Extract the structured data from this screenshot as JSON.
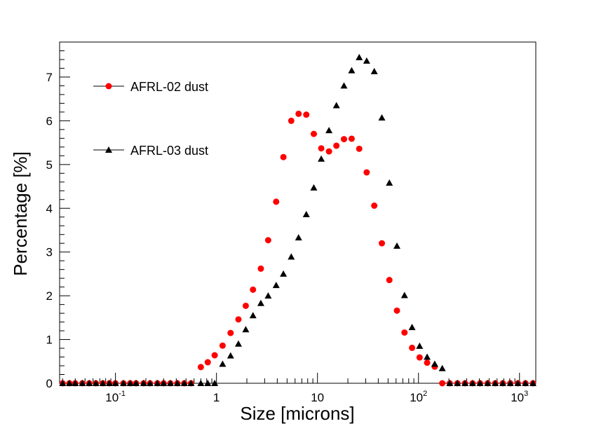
{
  "chart_data": {
    "type": "scatter",
    "title": "",
    "xlabel": "Size [microns]",
    "ylabel": "Percentage [%]",
    "xscale": "log",
    "xlim": [
      0.028,
      1450
    ],
    "ylim": [
      0,
      7.8
    ],
    "grid": false,
    "legend_position": "top-left",
    "x_ticks": [
      {
        "base": "10",
        "exp": "-1",
        "value": 0.1
      },
      {
        "base": "1",
        "exp": "",
        "value": 1
      },
      {
        "base": "10",
        "exp": "",
        "value": 10
      },
      {
        "base": "10",
        "exp": "2",
        "value": 100
      },
      {
        "base": "10",
        "exp": "3",
        "value": 1000
      }
    ],
    "y_ticks": [
      "0",
      "1",
      "2",
      "3",
      "4",
      "5",
      "6",
      "7"
    ],
    "series": [
      {
        "name": "AFRL-02 dust",
        "marker": "circle",
        "color": "#ff0000",
        "x": [
          0.03,
          0.035,
          0.04,
          0.047,
          0.055,
          0.064,
          0.075,
          0.087,
          0.1,
          0.12,
          0.14,
          0.16,
          0.19,
          0.22,
          0.26,
          0.3,
          0.35,
          0.41,
          0.48,
          0.56,
          0.7,
          0.82,
          0.96,
          1.15,
          1.38,
          1.65,
          1.95,
          2.3,
          2.75,
          3.25,
          3.9,
          4.6,
          5.5,
          6.5,
          7.75,
          9.2,
          10.9,
          13,
          15.4,
          18.3,
          21.8,
          25.9,
          30.7,
          36.5,
          43.4,
          51.5,
          61.2,
          72.7,
          86.4,
          102.6,
          121.8,
          144.8,
          172,
          204,
          243,
          289,
          343,
          407,
          484,
          575,
          683,
          811,
          964,
          1145,
          1360
        ],
        "values": [
          0,
          0,
          0,
          0,
          0,
          0,
          0,
          0,
          0,
          0,
          0,
          0,
          0,
          0,
          0,
          0,
          0,
          0,
          0,
          0,
          0.37,
          0.48,
          0.64,
          0.86,
          1.15,
          1.46,
          1.77,
          2.14,
          2.62,
          3.27,
          4.15,
          5.17,
          6.0,
          6.16,
          6.14,
          5.7,
          5.37,
          5.3,
          5.43,
          5.58,
          5.59,
          5.36,
          4.82,
          4.06,
          3.2,
          2.36,
          1.66,
          1.16,
          0.81,
          0.59,
          0.47,
          0.38,
          0,
          0,
          0,
          0,
          0,
          0,
          0,
          0,
          0,
          0,
          0,
          0,
          0
        ]
      },
      {
        "name": "AFRL-03 dust",
        "marker": "triangle",
        "color": "#000000",
        "x": [
          0.03,
          0.035,
          0.04,
          0.047,
          0.055,
          0.064,
          0.075,
          0.087,
          0.1,
          0.12,
          0.14,
          0.16,
          0.19,
          0.22,
          0.26,
          0.3,
          0.35,
          0.41,
          0.48,
          0.56,
          0.7,
          0.82,
          0.96,
          1.15,
          1.38,
          1.65,
          1.95,
          2.3,
          2.75,
          3.25,
          3.9,
          4.6,
          5.5,
          6.5,
          7.75,
          9.2,
          10.9,
          13,
          15.4,
          18.3,
          21.8,
          25.9,
          30.7,
          36.5,
          43.4,
          51.5,
          61.2,
          72.7,
          86.4,
          102.6,
          121.8,
          144.8,
          172,
          204,
          243,
          289,
          343,
          407,
          484,
          575,
          683,
          811,
          964,
          1145,
          1360
        ],
        "values": [
          0,
          0,
          0,
          0,
          0,
          0,
          0,
          0,
          0,
          0,
          0,
          0,
          0,
          0,
          0,
          0,
          0,
          0,
          0,
          0,
          0,
          0,
          0,
          0.44,
          0.63,
          0.9,
          1.23,
          1.55,
          1.83,
          2.0,
          2.24,
          2.5,
          2.89,
          3.33,
          3.86,
          4.47,
          5.13,
          5.78,
          6.35,
          6.8,
          7.15,
          7.45,
          7.37,
          7.13,
          6.07,
          4.58,
          3.14,
          2.01,
          1.28,
          0.85,
          0.6,
          0.44,
          0.34,
          0,
          0,
          0,
          0,
          0,
          0,
          0,
          0,
          0,
          0,
          0,
          0
        ]
      }
    ]
  }
}
